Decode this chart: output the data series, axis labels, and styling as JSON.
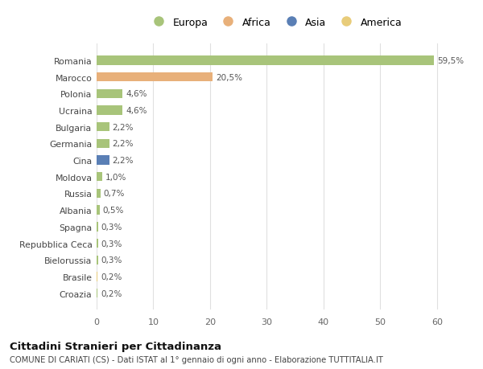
{
  "categories": [
    "Romania",
    "Marocco",
    "Polonia",
    "Ucraina",
    "Bulgaria",
    "Germania",
    "Cina",
    "Moldova",
    "Russia",
    "Albania",
    "Spagna",
    "Repubblica Ceca",
    "Bielorussia",
    "Brasile",
    "Croazia"
  ],
  "values": [
    59.5,
    20.5,
    4.6,
    4.6,
    2.2,
    2.2,
    2.2,
    1.0,
    0.7,
    0.5,
    0.3,
    0.3,
    0.3,
    0.2,
    0.2
  ],
  "labels": [
    "59,5%",
    "20,5%",
    "4,6%",
    "4,6%",
    "2,2%",
    "2,2%",
    "2,2%",
    "1,0%",
    "0,7%",
    "0,5%",
    "0,3%",
    "0,3%",
    "0,3%",
    "0,2%",
    "0,2%"
  ],
  "continents": [
    "Europa",
    "Africa",
    "Europa",
    "Europa",
    "Europa",
    "Europa",
    "Asia",
    "Europa",
    "Europa",
    "Europa",
    "Europa",
    "Europa",
    "Europa",
    "America",
    "Europa"
  ],
  "continent_colors": {
    "Europa": "#a8c47a",
    "Africa": "#e8b07a",
    "Asia": "#5a7fb5",
    "America": "#e8cc7a"
  },
  "legend_order": [
    "Europa",
    "Africa",
    "Asia",
    "America"
  ],
  "legend_colors": [
    "#a8c47a",
    "#e8b07a",
    "#5a7fb5",
    "#e8cc7a"
  ],
  "title": "Cittadini Stranieri per Cittadinanza",
  "subtitle": "COMUNE DI CARIATI (CS) - Dati ISTAT al 1° gennaio di ogni anno - Elaborazione TUTTITALIA.IT",
  "xlim": [
    0,
    63
  ],
  "xticks": [
    0,
    10,
    20,
    30,
    40,
    50,
    60
  ],
  "background_color": "#ffffff",
  "plot_background": "#ffffff",
  "grid_color": "#e0e0e0",
  "bar_height": 0.55
}
